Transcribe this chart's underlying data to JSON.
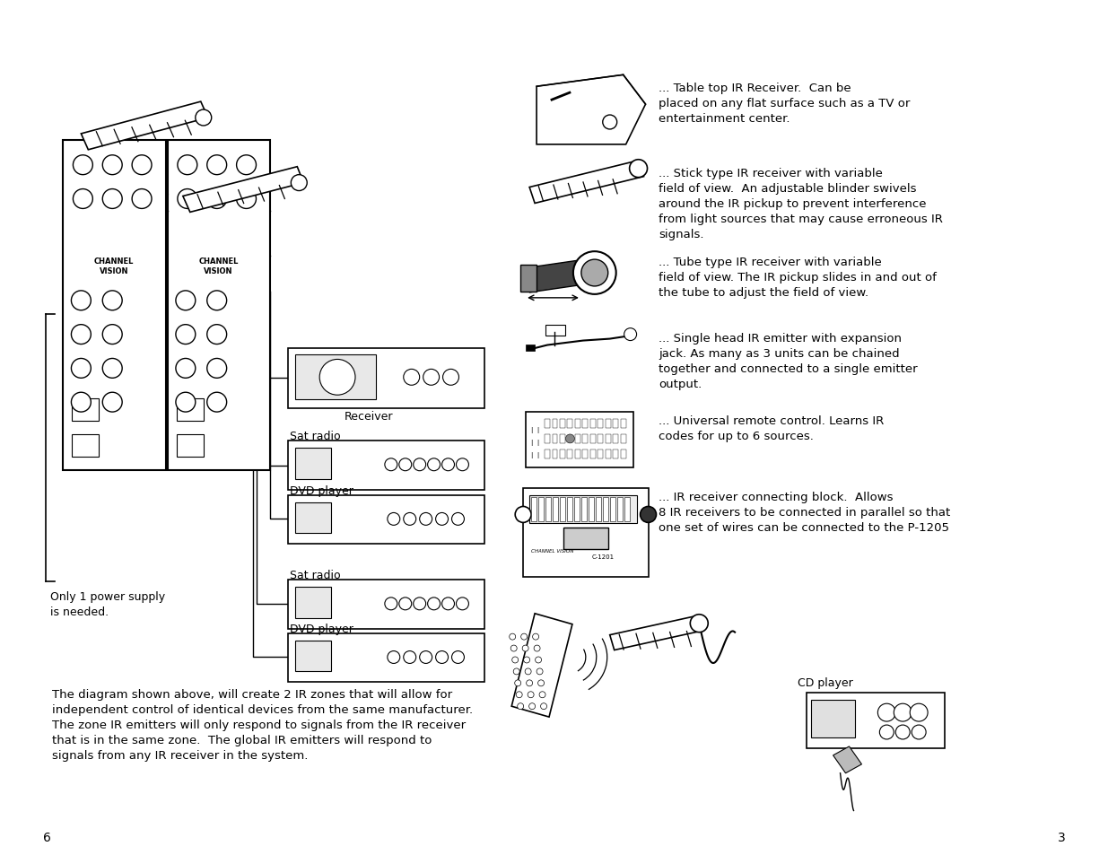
{
  "bg_color": "#ffffff",
  "page_width": 12.35,
  "page_height": 9.54,
  "page_num_left": "6",
  "page_num_right": "3",
  "bottom_text": "The diagram shown above, will create 2 IR zones that will allow for\nindependent control of identical devices from the same manufacturer.\nThe zone IR emitters will only respond to signals from the IR receiver\nthat is in the same zone.  The global IR emitters will respond to\nsignals from any IR receiver in the system.",
  "only_one_power": "Only 1 power supply\nis needed.",
  "label_receiver": "Receiver",
  "label_sat_radio1": "Sat radio",
  "label_dvd_player1": "DVD player",
  "label_sat_radio2": "Sat radio",
  "label_dvd_player2": "DVD player",
  "label_cd_player": "CD player",
  "rp_texts": [
    "... Table top IR Receiver.  Can be\nplaced on any flat surface such as a TV or\nentertainment center.",
    "... Stick type IR receiver with variable\nfield of view.  An adjustable blinder swivels\naround the IR pickup to prevent interference\nfrom light sources that may cause erroneous IR\nsignals.",
    "... Tube type IR receiver with variable\nfield of view. The IR pickup slides in and out of\nthe tube to adjust the field of view.",
    "... Single head IR emitter with expansion\njack. As many as 3 units can be chained\ntogether and connected to a single emitter\noutput.",
    "... Universal remote control. Learns IR\ncodes for up to 6 sources.",
    "... IR receiver connecting block.  Allows\n8 IR receivers to be connected in parallel so that\none set of wires can be connected to the P-1205"
  ],
  "font_size_body": 9.5,
  "font_size_label": 9.0,
  "font_size_page": 10.0
}
